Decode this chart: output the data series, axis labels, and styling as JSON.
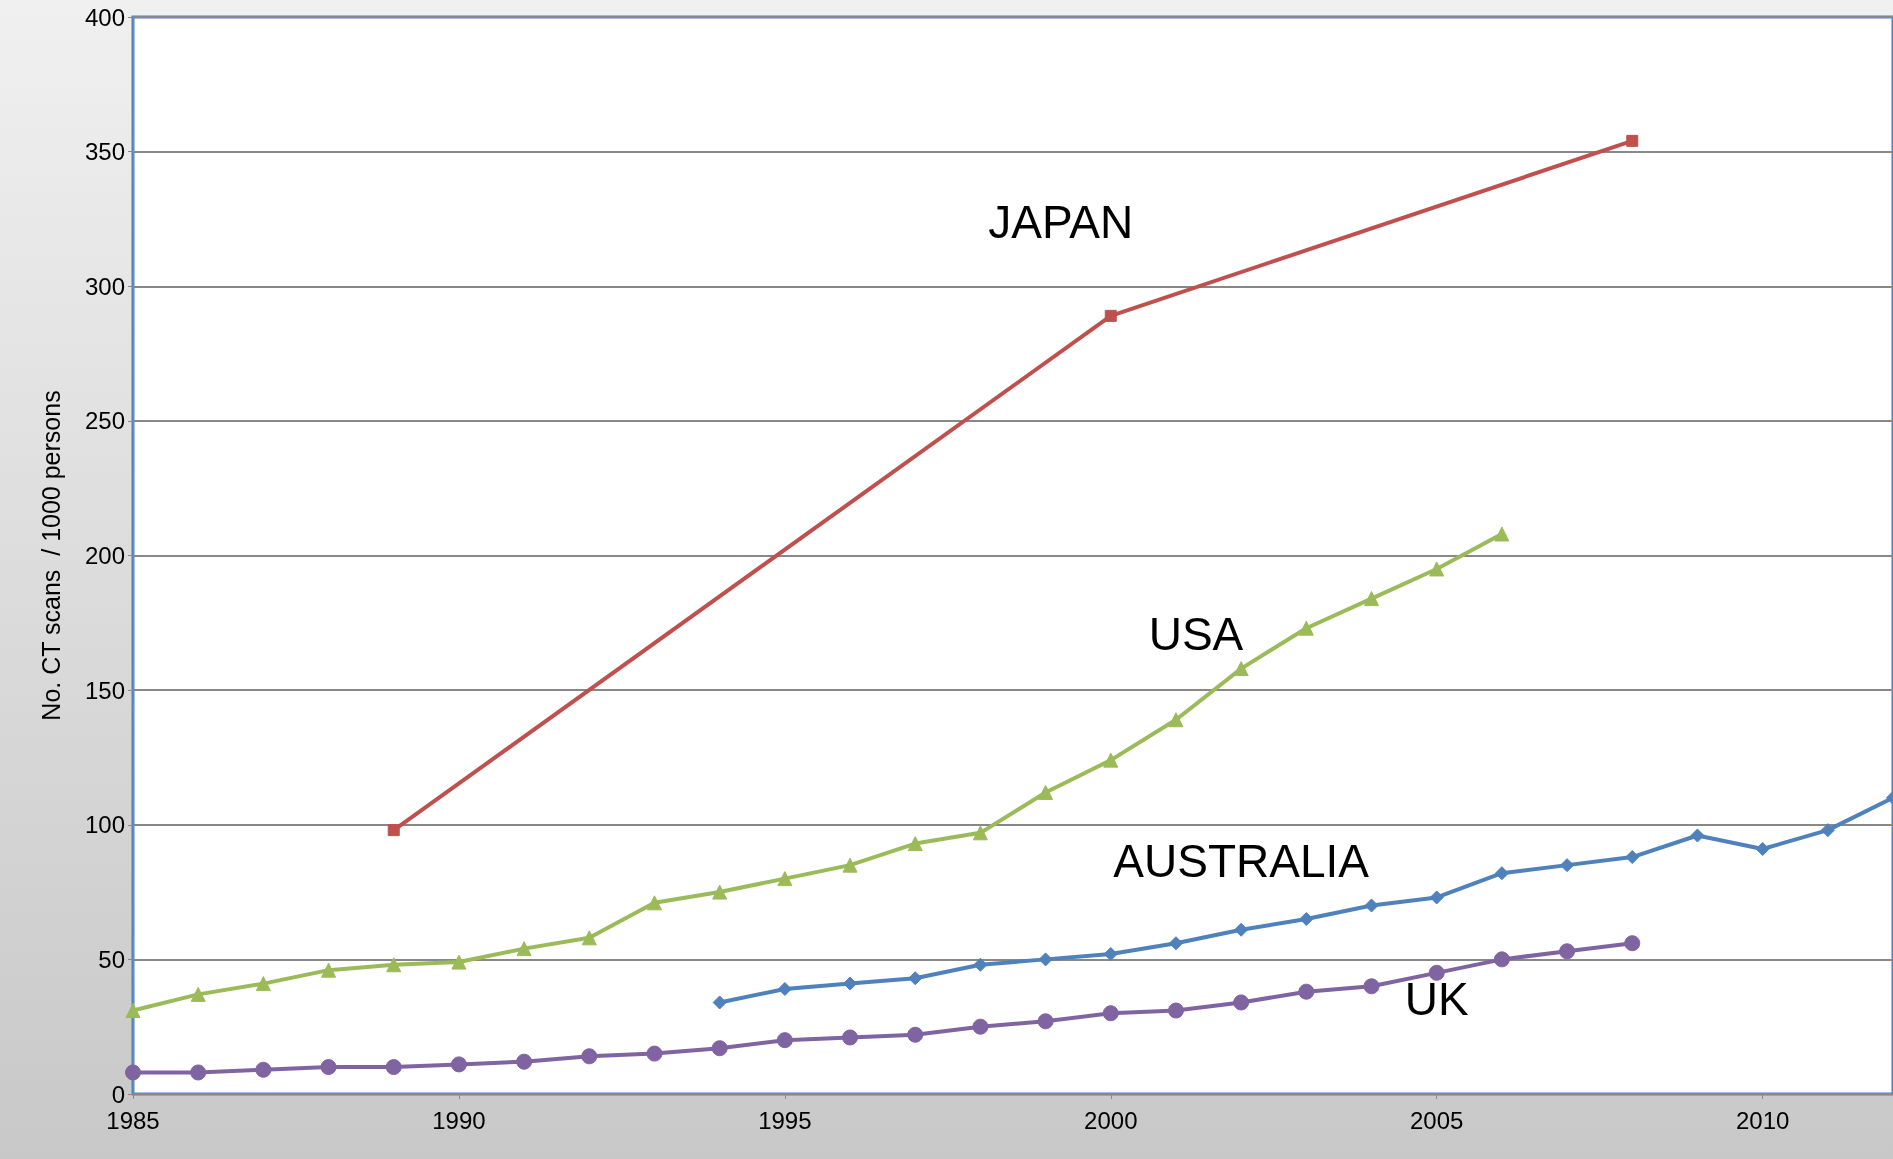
{
  "chart_data": {
    "type": "line",
    "ylabel": "No. CT scans  / 1000 persons",
    "xlim": [
      1985,
      2012
    ],
    "xticks": [
      1985,
      1990,
      1995,
      2000,
      2005,
      2010
    ],
    "ylim": [
      0,
      400
    ],
    "yticks": [
      0,
      50,
      100,
      150,
      200,
      250,
      300,
      350,
      400
    ],
    "grid": "y",
    "legend": false,
    "line_style": "solid",
    "series": [
      {
        "name": "JAPAN",
        "color": "#c0504d",
        "marker": "square",
        "x": [
          1989,
          2000,
          2008
        ],
        "values": [
          98,
          289,
          354
        ]
      },
      {
        "name": "USA",
        "color": "#9bbb59",
        "marker": "triangle",
        "x": [
          1985,
          1986,
          1987,
          1988,
          1989,
          1990,
          1991,
          1992,
          1993,
          1994,
          1995,
          1996,
          1997,
          1998,
          1999,
          2000,
          2001,
          2002,
          2003,
          2004,
          2005,
          2006
        ],
        "values": [
          31,
          37,
          41,
          46,
          48,
          49,
          54,
          58,
          71,
          75,
          80,
          85,
          93,
          97,
          112,
          124,
          139,
          158,
          173,
          184,
          195,
          208
        ]
      },
      {
        "name": "AUSTRALIA",
        "color": "#4f81bd",
        "marker": "diamond",
        "x": [
          1994,
          1995,
          1996,
          1997,
          1998,
          1999,
          2000,
          2001,
          2002,
          2003,
          2004,
          2005,
          2006,
          2007,
          2008,
          2009,
          2010,
          2011,
          2012
        ],
        "values": [
          34,
          39,
          41,
          43,
          48,
          50,
          52,
          56,
          61,
          65,
          70,
          73,
          82,
          85,
          88,
          96,
          91,
          98,
          110
        ]
      },
      {
        "name": "UK",
        "color": "#8064a2",
        "marker": "circle",
        "x": [
          1985,
          1986,
          1987,
          1988,
          1989,
          1990,
          1991,
          1992,
          1993,
          1994,
          1995,
          1996,
          1997,
          1998,
          1999,
          2000,
          2001,
          2002,
          2003,
          2004,
          2005,
          2006,
          2007,
          2008
        ],
        "values": [
          8,
          8,
          9,
          10,
          10,
          11,
          12,
          14,
          15,
          17,
          20,
          21,
          22,
          25,
          27,
          30,
          31,
          34,
          38,
          40,
          45,
          50,
          53,
          56
        ]
      }
    ]
  }
}
